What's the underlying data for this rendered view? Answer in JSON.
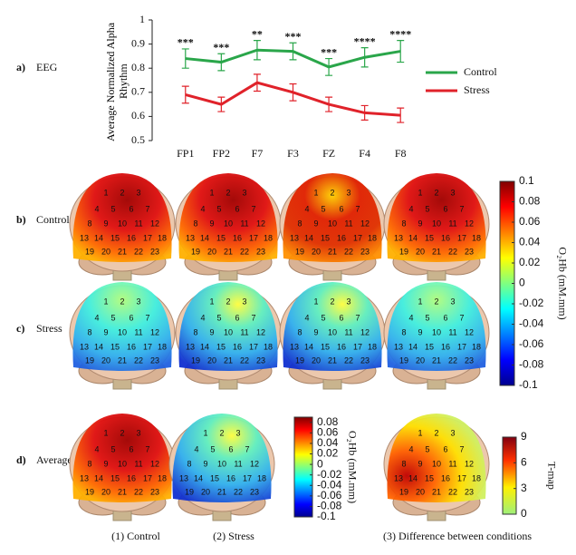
{
  "chart_data": [
    {
      "type": "line",
      "panel_label": "a)",
      "row_label": "EEG",
      "y_label": "Average Normalized Alpha Rhythm",
      "categories": [
        "FP1",
        "FP2",
        "F7",
        "F3",
        "FZ",
        "F4",
        "F8"
      ],
      "series": [
        {
          "name": "Control",
          "color": "#2aa64a",
          "values": [
            0.84,
            0.825,
            0.875,
            0.87,
            0.805,
            0.845,
            0.87
          ],
          "errors": [
            0.04,
            0.035,
            0.04,
            0.035,
            0.035,
            0.04,
            0.045
          ]
        },
        {
          "name": "Stress",
          "color": "#e0222a",
          "values": [
            0.69,
            0.65,
            0.74,
            0.7,
            0.65,
            0.615,
            0.605
          ],
          "errors": [
            0.035,
            0.03,
            0.035,
            0.035,
            0.03,
            0.03,
            0.03
          ]
        }
      ],
      "annotations": [
        "***",
        "***",
        "**",
        "***",
        "***",
        "****",
        "****"
      ],
      "ylim": [
        0.5,
        1
      ],
      "yticks": [
        0.5,
        0.6,
        0.7,
        0.8,
        0.9,
        1
      ],
      "legend": "right"
    },
    {
      "type": "colorbar",
      "label": "O₂Hb (mM.mm)",
      "ylim": [
        -0.1,
        0.1
      ],
      "yticks": [
        -0.1,
        -0.08,
        -0.06,
        -0.04,
        -0.02,
        0,
        0.02,
        0.04,
        0.06,
        0.08,
        0.1
      ],
      "colormap": "jet"
    },
    {
      "type": "colorbar",
      "label": "O₂Hb (mM.mm)",
      "ylim": [
        -0.1,
        0.09
      ],
      "yticks": [
        -0.1,
        -0.08,
        -0.06,
        -0.04,
        -0.02,
        0,
        0.02,
        0.04,
        0.06,
        0.08
      ],
      "colormap": "jet"
    },
    {
      "type": "colorbar",
      "label": "T-map",
      "ylim": [
        0,
        9
      ],
      "yticks": [
        0,
        3,
        6,
        9
      ],
      "colormap": "tmap"
    }
  ],
  "brain_maps": {
    "rows": [
      {
        "panel": "b)",
        "name": "Control"
      },
      {
        "panel": "c)",
        "name": "Stress"
      },
      {
        "panel": "d)",
        "name": "Average"
      }
    ],
    "columns": [
      "(1)  Control",
      "(2) Stress",
      "(3) Difference between conditions"
    ],
    "channels": [
      "1",
      "2",
      "3",
      "4",
      "5",
      "6",
      "7",
      "8",
      "9",
      "10",
      "11",
      "12",
      "13",
      "14",
      "15",
      "16",
      "17",
      "18",
      "19",
      "20",
      "21",
      "22",
      "23"
    ]
  }
}
